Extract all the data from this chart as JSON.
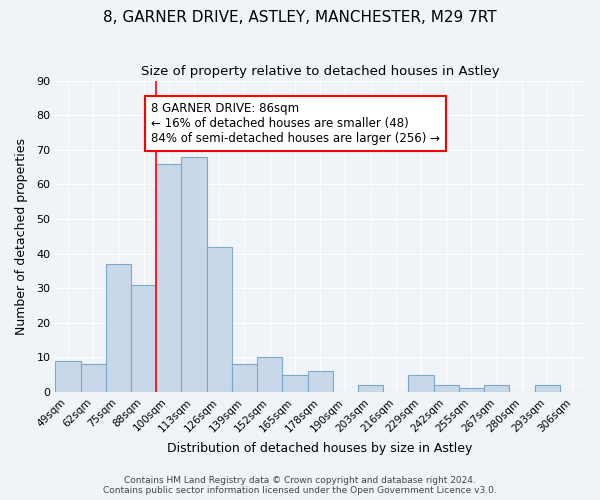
{
  "title": "8, GARNER DRIVE, ASTLEY, MANCHESTER, M29 7RT",
  "subtitle": "Size of property relative to detached houses in Astley",
  "xlabel": "Distribution of detached houses by size in Astley",
  "ylabel": "Number of detached properties",
  "footer_lines": [
    "Contains HM Land Registry data © Crown copyright and database right 2024.",
    "Contains public sector information licensed under the Open Government Licence v3.0."
  ],
  "bin_labels": [
    "49sqm",
    "62sqm",
    "75sqm",
    "88sqm",
    "100sqm",
    "113sqm",
    "126sqm",
    "139sqm",
    "152sqm",
    "165sqm",
    "178sqm",
    "190sqm",
    "203sqm",
    "216sqm",
    "229sqm",
    "242sqm",
    "255sqm",
    "267sqm",
    "280sqm",
    "293sqm",
    "306sqm"
  ],
  "bar_heights": [
    9,
    8,
    37,
    31,
    66,
    68,
    42,
    8,
    10,
    5,
    6,
    0,
    2,
    0,
    5,
    2,
    1,
    2,
    0,
    2,
    0
  ],
  "ylim": [
    0,
    90
  ],
  "yticks": [
    0,
    10,
    20,
    30,
    40,
    50,
    60,
    70,
    80,
    90
  ],
  "bar_color": "#c8d8e8",
  "bar_edge_color": "#7aaac8",
  "vline_x": 3.5,
  "vline_color": "red",
  "annotation_title": "8 GARNER DRIVE: 86sqm",
  "annotation_line1": "← 16% of detached houses are smaller (48)",
  "annotation_line2": "84% of semi-detached houses are larger (256) →",
  "annotation_box_color": "white",
  "annotation_box_edge_color": "red",
  "background_color": "#f0f4f8"
}
